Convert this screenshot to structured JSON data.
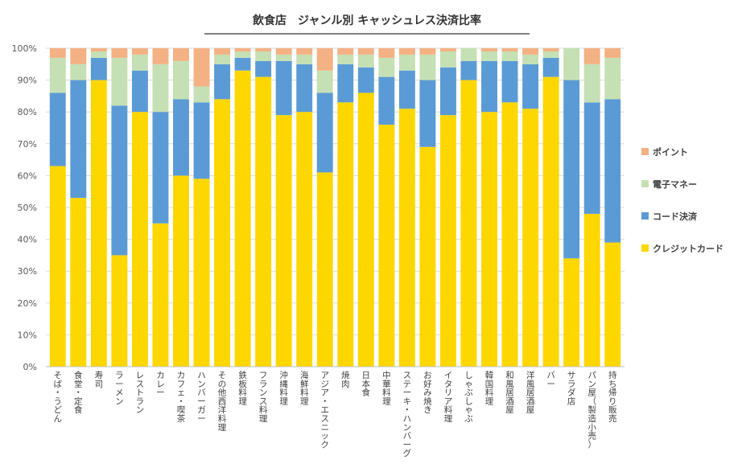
{
  "chart_data": {
    "type": "bar",
    "stacked": true,
    "title": "飲食店　ジャンル別 キャッシュレス決済比率",
    "xlabel": "",
    "ylabel": "",
    "ylim": [
      0,
      100
    ],
    "yticks": [
      "0%",
      "10%",
      "20%",
      "30%",
      "40%",
      "50%",
      "60%",
      "70%",
      "80%",
      "90%",
      "100%"
    ],
    "grid": true,
    "legend_position": "right",
    "categories": [
      "そば・うどん",
      "食堂・定食",
      "寿司",
      "ラーメン",
      "レストラン",
      "カレー",
      "カフェ・喫茶",
      "ハンバーガー",
      "その他西洋料理",
      "鉄板料理",
      "フランス料理",
      "沖縄料理",
      "海鮮料理",
      "アジア・エスニック",
      "焼肉",
      "日本食",
      "中華料理",
      "ステーキ・ハンバーグ",
      "お好み焼き",
      "イタリア料理",
      "しゃぶしゃぶ",
      "韓国料理",
      "和風居酒屋",
      "洋風居酒屋",
      "バー",
      "サラダ店",
      "パン屋（製造小売）",
      "持ち帰り販売"
    ],
    "series": [
      {
        "name": "クレジットカード",
        "color": "#FFD700",
        "values": [
          63,
          53,
          90,
          35,
          80,
          45,
          60,
          59,
          84,
          93,
          91,
          79,
          80,
          61,
          83,
          86,
          76,
          81,
          69,
          79,
          90,
          80,
          83,
          81,
          91,
          34,
          48,
          39
        ]
      },
      {
        "name": "コード決済",
        "color": "#5B9BD5",
        "values": [
          23,
          37,
          7,
          47,
          13,
          35,
          24,
          24,
          11,
          4,
          5,
          17,
          15,
          25,
          12,
          8,
          15,
          12,
          21,
          15,
          6,
          16,
          13,
          14,
          6,
          56,
          35,
          45
        ]
      },
      {
        "name": "電子マネー",
        "color": "#C5E0B4",
        "values": [
          11,
          5,
          2,
          15,
          5,
          15,
          12,
          5,
          3,
          2,
          3,
          2,
          3,
          7,
          3,
          4,
          6,
          5,
          8,
          5,
          4,
          3,
          3,
          3,
          2,
          10,
          12,
          13
        ]
      },
      {
        "name": "ポイント",
        "color": "#F4B183",
        "values": [
          3,
          5,
          1,
          3,
          2,
          5,
          4,
          12,
          2,
          1,
          1,
          2,
          2,
          7,
          2,
          2,
          3,
          2,
          2,
          1,
          0,
          1,
          1,
          2,
          1,
          0,
          5,
          3
        ]
      }
    ],
    "legend_order": [
      "ポイント",
      "電子マネー",
      "コード決済",
      "クレジットカード"
    ]
  }
}
